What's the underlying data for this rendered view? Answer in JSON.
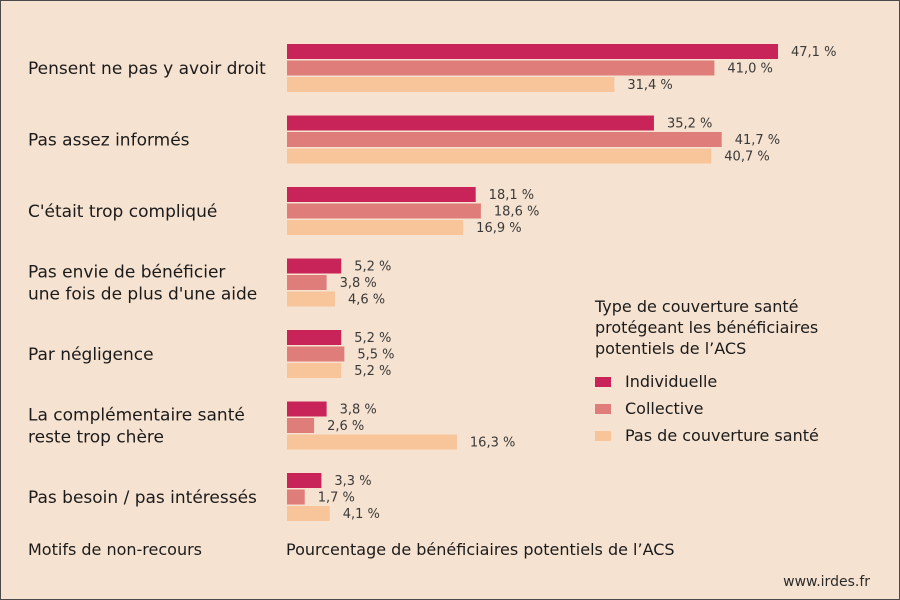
{
  "chart_data": {
    "type": "bar",
    "orientation": "horizontal",
    "categories": [
      [
        "Pensent ne pas y avoir droit"
      ],
      [
        "Pas assez informés"
      ],
      [
        "C'était trop compliqué"
      ],
      [
        "Pas envie de bénéficier",
        "une fois de plus d'une aide"
      ],
      [
        "Par négligence"
      ],
      [
        "La complémentaire santé",
        "reste trop chère"
      ],
      [
        "Pas besoin / pas intéressés"
      ]
    ],
    "series": [
      {
        "name": "Individuelle",
        "color": "#c8245a",
        "values": [
          47.1,
          35.2,
          18.1,
          5.2,
          5.2,
          3.8,
          3.3
        ],
        "labels": [
          "47,1 %",
          "35,2 %",
          "18,1 %",
          "5,2 %",
          "5,2 %",
          "3,8 %",
          "3,3 %"
        ]
      },
      {
        "name": "Collective",
        "color": "#df7d7b",
        "values": [
          41.0,
          41.7,
          18.6,
          3.8,
          5.5,
          2.6,
          1.7
        ],
        "labels": [
          "41,0 %",
          "41,7 %",
          "18,6 %",
          "3,8 %",
          "5,5 %",
          "2,6 %",
          "1,7 %"
        ]
      },
      {
        "name": "Pas de couverture santé",
        "color": "#f8c49a",
        "values": [
          31.4,
          40.7,
          16.9,
          4.6,
          5.2,
          16.3,
          4.1
        ],
        "labels": [
          "31,4 %",
          "40,7 %",
          "16,9 %",
          "4,6 %",
          "5,2 %",
          "16,3 %",
          "4,1 %"
        ]
      }
    ],
    "legend": {
      "title": [
        "Type de couverture santé",
        "protégeant les bénéficiaires",
        "potentiels de l’ACS"
      ],
      "position": "right"
    },
    "xlabel": "Pourcentage de bénéficiaires potentiels de l’ACS",
    "ylabel": "Motifs de non-recours",
    "xlim": [
      0,
      50
    ],
    "grid": false
  },
  "source": "www.irdes.fr"
}
